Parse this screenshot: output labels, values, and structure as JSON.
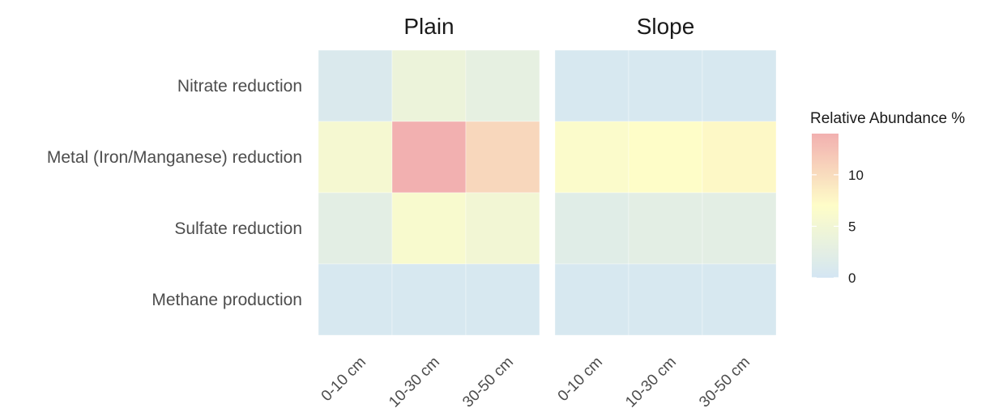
{
  "chart_data": {
    "type": "heatmap",
    "title": "",
    "xlabel": "",
    "ylabel": "",
    "facets": [
      "Plain",
      "Slope"
    ],
    "x_categories": [
      "0-10 cm",
      "10-30 cm",
      "30-50 cm"
    ],
    "y_categories": [
      "Nitrate reduction",
      "Metal (Iron/Manganese) reduction",
      "Sulfate reduction",
      "Methane production"
    ],
    "values": {
      "Plain": [
        [
          1.0,
          4.0,
          3.0
        ],
        [
          5.5,
          14.0,
          10.5
        ],
        [
          2.5,
          6.0,
          5.0
        ],
        [
          0.5,
          0.5,
          0.5
        ]
      ],
      "Slope": [
        [
          0.5,
          0.5,
          0.5
        ],
        [
          6.5,
          7.0,
          7.5
        ],
        [
          2.0,
          2.5,
          2.5
        ],
        [
          0.5,
          0.5,
          0.5
        ]
      ]
    },
    "legend": {
      "title": "Relative Abundance %",
      "position": "right",
      "ticks": [
        0,
        5,
        10
      ],
      "range": [
        0,
        14
      ],
      "colors": [
        "#d4e6f3",
        "#fefdc8",
        "#f2b0b0"
      ]
    },
    "grid": false
  }
}
